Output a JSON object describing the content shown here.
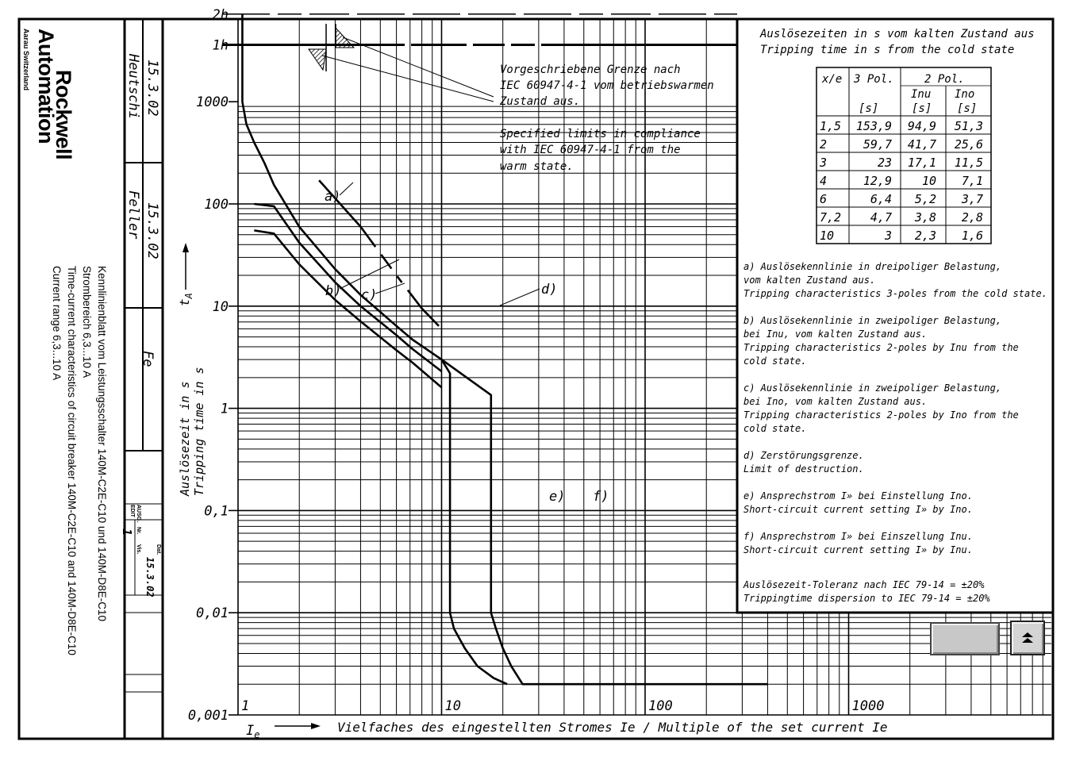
{
  "titleblock": {
    "company_line1": "Rockwell",
    "company_line2": "Automation",
    "location": "Aarau Switzerland",
    "description": [
      "Kennlinienblatt vom Leistungsschalter 140M-C2E-C10 und 140M-D8E-C10",
      "Strombereich 6,3...10 A",
      "Time-current characteristics of circuit breaker 140M-C2E-C10 and 140M-D8E-C10",
      "Current range 6,3...10 A"
    ],
    "date1": "15.3.02",
    "name1": "Heutschi",
    "date2": "15.3.02",
    "name2": "Feller",
    "short": "Fe",
    "ausg_label1": "AUSG.",
    "ausg_label2": "EDIT",
    "nr_label": "Nr.",
    "nr_value": "1",
    "dat_label": "Dat.",
    "dat_value": "15.3.02",
    "vis_label": "Vis."
  },
  "chart_data": {
    "type": "line",
    "xscale": "log",
    "yscale": "log",
    "xlim": [
      1,
      1200
    ],
    "ylim": [
      0.001,
      2000
    ],
    "xticks": [
      "1",
      "10",
      "100",
      "1000"
    ],
    "yticks": [
      "0,001",
      "0,01",
      "0,1",
      "1",
      "10",
      "100",
      "1000",
      "1h",
      "2h"
    ],
    "xlabel_symbol": "Ie",
    "xlabel": "Vielfaches des eingestellten Stromes  Ie / Multiple of the set current Ie",
    "ylabel_de": "Auslösezeit in s",
    "ylabel_en": "Tripping time in s",
    "ylabel_symbol": "tA",
    "series": [
      {
        "name": "a)",
        "x": [
          1.05,
          1.1,
          1.2,
          1.35,
          1.5,
          2,
          3,
          4,
          6,
          7.2,
          10
        ],
        "y": [
          1000,
          600,
          400,
          250,
          153.9,
          59.7,
          23,
          12.9,
          6.4,
          4.7,
          3
        ]
      },
      {
        "name": "b)",
        "x": [
          1.2,
          1.5,
          2,
          3,
          4,
          6,
          7.2,
          10
        ],
        "y": [
          100,
          94.9,
          41.7,
          17.1,
          10,
          5.2,
          3.8,
          2.3
        ]
      },
      {
        "name": "c)",
        "x": [
          1.2,
          1.5,
          2,
          3,
          4,
          6,
          7.2,
          10
        ],
        "y": [
          55,
          51.3,
          25.6,
          11.5,
          7.1,
          3.7,
          2.8,
          1.6
        ]
      },
      {
        "name": "d)",
        "x": [
          2.5,
          4,
          6,
          8,
          10
        ],
        "y": [
          170,
          60,
          20,
          9.5,
          6
        ]
      },
      {
        "name": "e)",
        "x": [
          10,
          11,
          11,
          11.5,
          13,
          15,
          18,
          21
        ],
        "y": [
          3,
          2.2,
          0.01,
          0.007,
          0.0045,
          0.003,
          0.0023,
          0.002
        ]
      },
      {
        "name": "f)",
        "x": [
          10,
          17.5,
          17.5,
          18.5,
          20,
          22,
          25,
          400
        ],
        "y": [
          3,
          1.35,
          0.01,
          0.007,
          0.0045,
          0.003,
          0.002,
          0.002
        ]
      }
    ],
    "annotation_de": [
      "Vorgeschriebene Grenze nach",
      "IEC 60947-4-1 vom betriebswarmen",
      "Zustand aus."
    ],
    "annotation_en": [
      "Specified limits in compliance",
      "with IEC 60947-4-1 from the",
      "warm state."
    ],
    "legend_title": [
      "Auslösezeiten in s vom kalten Zustand aus",
      "Tripping time in s from the cold state"
    ],
    "table": {
      "header_xie": "x/e",
      "header_3pol": "3 Pol.",
      "header_2pol": "2 Pol.",
      "header_inu": "Inu",
      "header_ino": "Ino",
      "unit": "[s]",
      "rows": [
        [
          "1,5",
          "153,9",
          "94,9",
          "51,3"
        ],
        [
          "2",
          "59,7",
          "41,7",
          "25,6"
        ],
        [
          "3",
          "23",
          "17,1",
          "11,5"
        ],
        [
          "4",
          "12,9",
          "10",
          "7,1"
        ],
        [
          "6",
          "6,4",
          "5,2",
          "3,7"
        ],
        [
          "7,2",
          "4,7",
          "3,8",
          "2,8"
        ],
        [
          "10",
          "3",
          "2,3",
          "1,6"
        ]
      ]
    },
    "notes": [
      [
        "a) Auslösekennlinie in dreipoliger Belastung,",
        "   vom kalten Zustand aus.",
        "   Tripping characteristics 3-poles from the cold state."
      ],
      [
        "b) Auslösekennlinie in zweipoliger Belastung,",
        "   bei Inu, vom kalten Zustand aus.",
        "   Tripping characteristics 2-poles by Inu from the",
        "   cold state."
      ],
      [
        "c) Auslösekennlinie in zweipoliger Belastung,",
        "   bei Ino, vom kalten Zustand aus.",
        "   Tripping characteristics 2-poles by Ino from the",
        "   cold state."
      ],
      [
        "d) Zerstörungsgrenze.",
        "   Limit of destruction."
      ],
      [
        "e) Ansprechstrom I» bei Einstellung Ino.",
        "   Short-circuit current setting I» by Ino."
      ],
      [
        "f) Ansprechstrom I» bei Einszellung Inu.",
        "   Short-circuit current setting I» by Inu."
      ],
      [
        "   Auslösezeit-Toleranz nach IEC 79-14 = ±20%",
        "   Trippingtime dispersion to IEC 79-14 = ±20%"
      ]
    ]
  },
  "controls": {
    "up_icon": "double-up-arrow-icon",
    "up_glyph": "⏶"
  }
}
